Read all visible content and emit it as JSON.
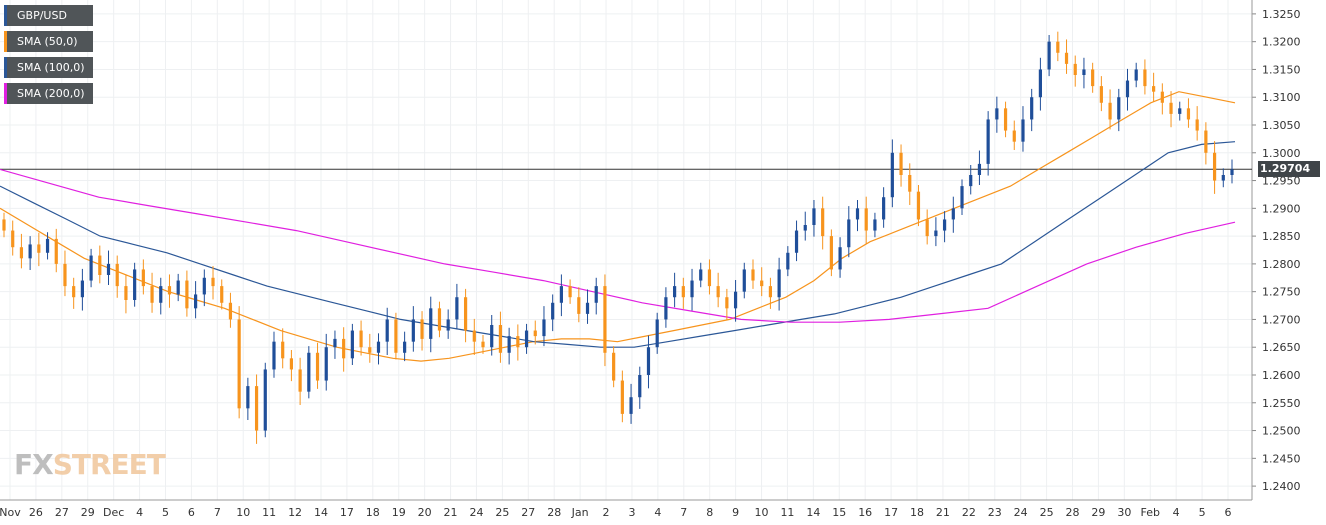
{
  "chart_data": {
    "type": "candlestick",
    "symbol": "GBP/USD",
    "legend": [
      {
        "label": "GBP/USD",
        "color": "#2b5797"
      },
      {
        "label": "SMA (50,0)",
        "color": "#f7941d"
      },
      {
        "label": "SMA (100,0)",
        "color": "#2b5797"
      },
      {
        "label": "SMA (200,0)",
        "color": "#e020e0"
      }
    ],
    "current_price_label": "1.29704",
    "current_price": 1.29704,
    "y_axis": {
      "ylim": [
        1.2375,
        1.3275
      ],
      "ticks": [
        "1.2400",
        "1.2450",
        "1.2500",
        "1.2550",
        "1.2600",
        "1.2650",
        "1.2700",
        "1.2750",
        "1.2800",
        "1.2850",
        "1.2900",
        "1.2950",
        "1.3000",
        "1.3050",
        "1.3100",
        "1.3150",
        "1.3200",
        "1.3250"
      ]
    },
    "x_axis": {
      "labels": [
        "Nov",
        "26",
        "27",
        "29",
        "Dec",
        "4",
        "5",
        "6",
        "7",
        "10",
        "11",
        "12",
        "14",
        "17",
        "18",
        "19",
        "20",
        "21",
        "24",
        "25",
        "27",
        "28",
        "Jan",
        "2",
        "3",
        "4",
        "7",
        "8",
        "9",
        "10",
        "11",
        "14",
        "15",
        "16",
        "17",
        "18",
        "21",
        "22",
        "23",
        "24",
        "25",
        "28",
        "29",
        "30",
        "Feb",
        "4",
        "5",
        "6"
      ]
    },
    "series": [
      {
        "name": "GBP/USD",
        "closes": [
          1.286,
          1.283,
          1.281,
          1.2835,
          1.282,
          1.2845,
          1.28,
          1.276,
          1.274,
          1.277,
          1.2815,
          1.278,
          1.28,
          1.276,
          1.2735,
          1.279,
          1.276,
          1.273,
          1.276,
          1.2745,
          1.277,
          1.272,
          1.2745,
          1.2775,
          1.276,
          1.273,
          1.27,
          1.254,
          1.258,
          1.25,
          1.261,
          1.266,
          1.263,
          1.261,
          1.257,
          1.264,
          1.259,
          1.265,
          1.2665,
          1.263,
          1.268,
          1.265,
          1.264,
          1.266,
          1.27,
          1.264,
          1.266,
          1.27,
          1.2665,
          1.272,
          1.268,
          1.27,
          1.274,
          1.268,
          1.266,
          1.265,
          1.269,
          1.264,
          1.267,
          1.265,
          1.268,
          1.267,
          1.27,
          1.273,
          1.276,
          1.274,
          1.271,
          1.273,
          1.276,
          1.264,
          1.259,
          1.253,
          1.256,
          1.26,
          1.265,
          1.27,
          1.274,
          1.276,
          1.274,
          1.277,
          1.279,
          1.276,
          1.274,
          1.272,
          1.275,
          1.279,
          1.277,
          1.276,
          1.274,
          1.279,
          1.282,
          1.286,
          1.287,
          1.29,
          1.285,
          1.279,
          1.283,
          1.288,
          1.29,
          1.286,
          1.288,
          1.292,
          1.3,
          1.296,
          1.293,
          1.288,
          1.285,
          1.286,
          1.288,
          1.29,
          1.294,
          1.296,
          1.298,
          1.306,
          1.308,
          1.304,
          1.302,
          1.306,
          1.31,
          1.315,
          1.32,
          1.318,
          1.316,
          1.314,
          1.315,
          1.312,
          1.309,
          1.306,
          1.31,
          1.313,
          1.315,
          1.312,
          1.311,
          1.309,
          1.307,
          1.308,
          1.306,
          1.304,
          1.3,
          1.295,
          1.296,
          1.297
        ]
      },
      {
        "name": "SMA (50,0)",
        "values": [
          1.29,
          1.287,
          1.284,
          1.281,
          1.279,
          1.277,
          1.275,
          1.2735,
          1.272,
          1.27,
          1.268,
          1.2665,
          1.265,
          1.264,
          1.263,
          1.2625,
          1.263,
          1.264,
          1.265,
          1.266,
          1.2665,
          1.2665,
          1.266,
          1.267,
          1.268,
          1.269,
          1.27,
          1.272,
          1.274,
          1.277,
          1.281,
          1.284,
          1.286,
          1.288,
          1.29,
          1.292,
          1.294,
          1.297,
          1.3,
          1.303,
          1.306,
          1.309,
          1.311,
          1.31,
          1.309
        ]
      },
      {
        "name": "SMA (100,0)",
        "values": [
          1.294,
          1.291,
          1.288,
          1.285,
          1.2835,
          1.282,
          1.28,
          1.278,
          1.276,
          1.2745,
          1.273,
          1.2715,
          1.27,
          1.269,
          1.268,
          1.267,
          1.266,
          1.2655,
          1.265,
          1.265,
          1.266,
          1.267,
          1.268,
          1.269,
          1.27,
          1.271,
          1.2725,
          1.274,
          1.276,
          1.278,
          1.28,
          1.284,
          1.288,
          1.292,
          1.296,
          1.3,
          1.3015,
          1.302
        ]
      },
      {
        "name": "SMA (200,0)",
        "values": [
          1.297,
          1.2945,
          1.292,
          1.2905,
          1.289,
          1.2875,
          1.286,
          1.284,
          1.282,
          1.28,
          1.2785,
          1.277,
          1.275,
          1.273,
          1.2715,
          1.27,
          1.2695,
          1.2695,
          1.27,
          1.271,
          1.272,
          1.276,
          1.28,
          1.283,
          1.2855,
          1.2875
        ]
      }
    ],
    "grid": true,
    "legend_position": "top-left"
  },
  "watermark": {
    "fx": "FX",
    "street": "STREET"
  }
}
